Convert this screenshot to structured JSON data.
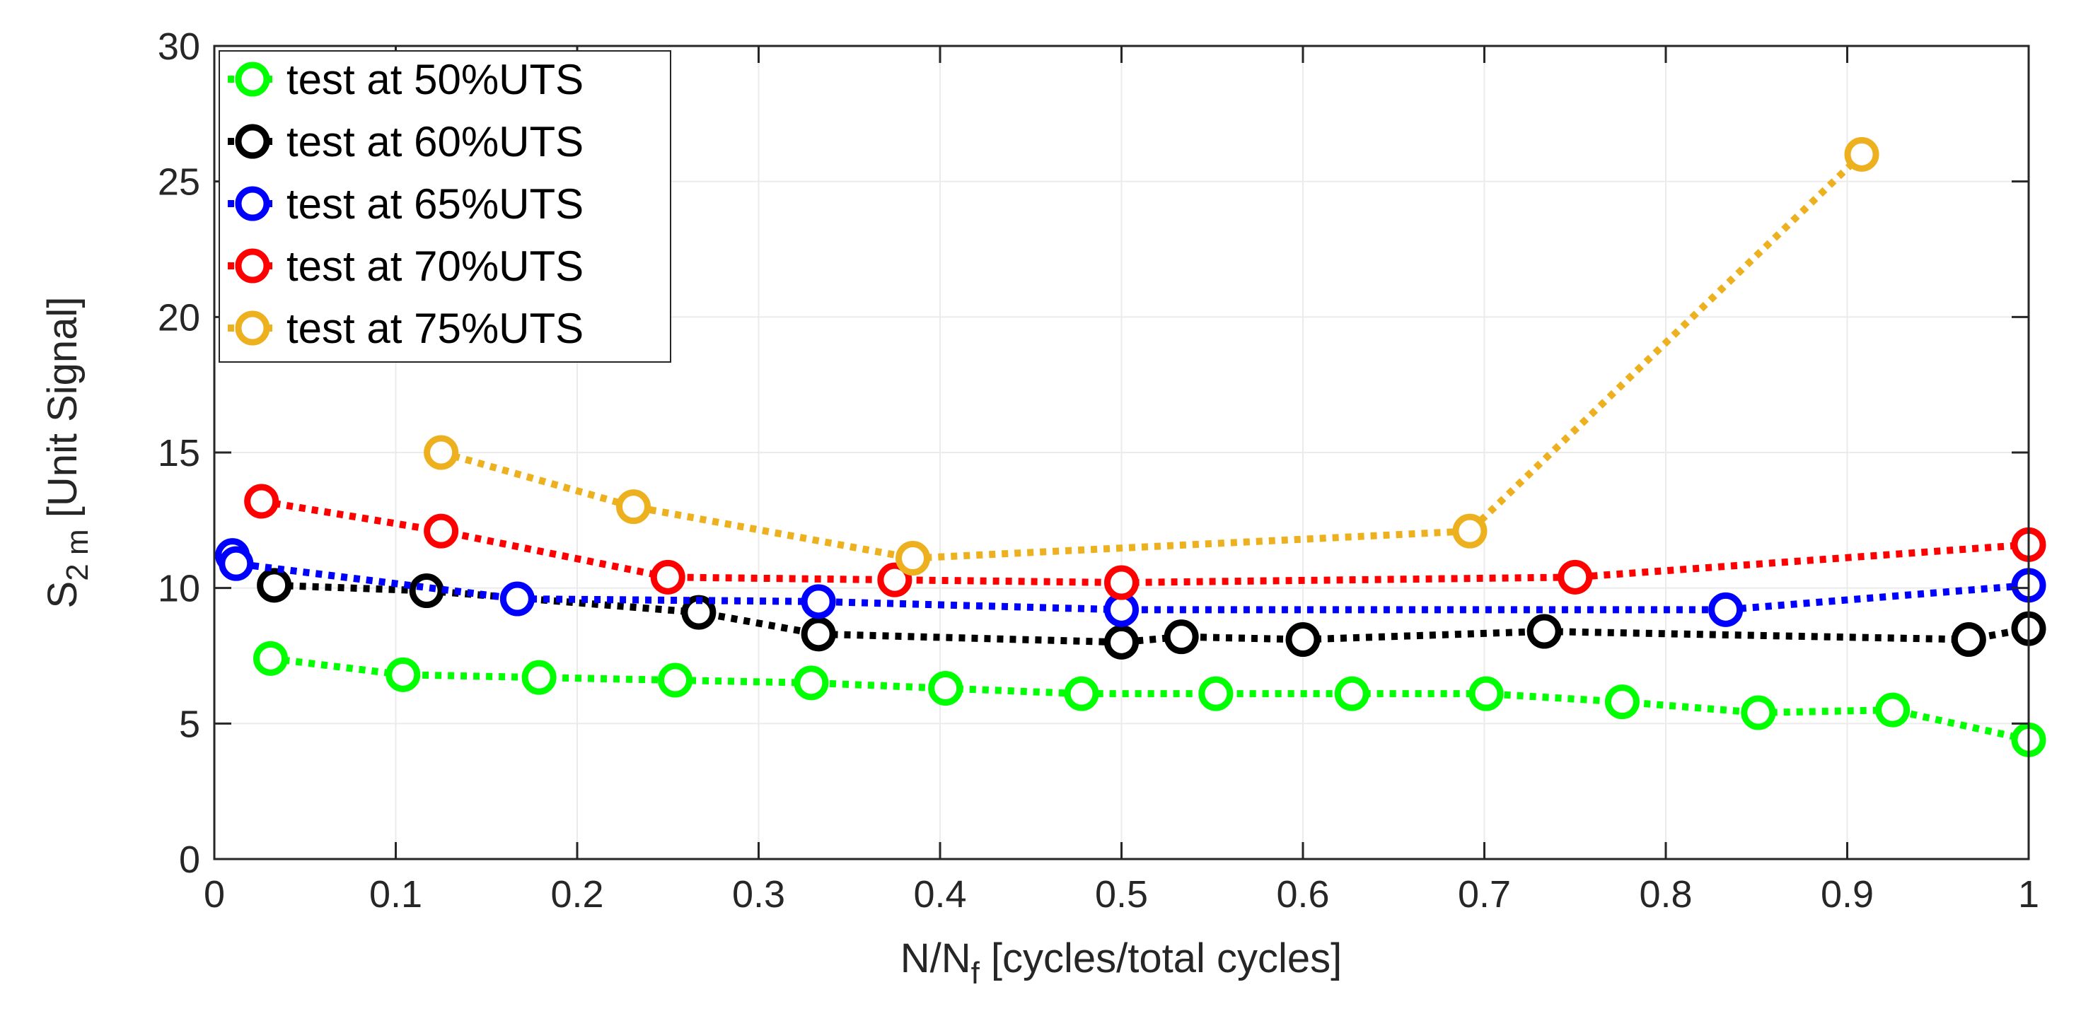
{
  "chart_data": {
    "type": "line",
    "title": "",
    "xlabel": "N/N",
    "xlabel_sub": "f",
    "xlabel_rest": " [cycles/total cycles]",
    "ylabel": "S",
    "ylabel_sub": "2 m",
    "ylabel_rest": " [Unit Signal]",
    "xlim": [
      0,
      1
    ],
    "ylim": [
      0,
      30
    ],
    "xticks": [
      0,
      0.1,
      0.2,
      0.3,
      0.4,
      0.5,
      0.6,
      0.7,
      0.8,
      0.9,
      1
    ],
    "xtick_labels": [
      "0",
      "0.1",
      "0.2",
      "0.3",
      "0.4",
      "0.5",
      "0.6",
      "0.7",
      "0.8",
      "0.9",
      "1"
    ],
    "yticks": [
      0,
      5,
      10,
      15,
      20,
      25,
      30
    ],
    "ytick_labels": [
      "0",
      "5",
      "10",
      "15",
      "20",
      "25",
      "30"
    ],
    "grid": true,
    "legend_position": "top-left",
    "series": [
      {
        "name": "test at 50%UTS",
        "color": "#00ff00",
        "x": [
          0.031,
          0.104,
          0.179,
          0.254,
          0.329,
          0.403,
          0.478,
          0.552,
          0.627,
          0.701,
          0.776,
          0.851,
          0.925,
          1.0
        ],
        "y": [
          7.4,
          6.8,
          6.7,
          6.6,
          6.5,
          6.3,
          6.1,
          6.1,
          6.1,
          6.1,
          5.8,
          5.4,
          5.5,
          4.4
        ]
      },
      {
        "name": "test at 60%UTS",
        "color": "#000000",
        "x": [
          0.033,
          0.117,
          0.267,
          0.333,
          0.5,
          0.533,
          0.6,
          0.733,
          0.967,
          1.0
        ],
        "y": [
          10.1,
          9.9,
          9.1,
          8.3,
          8.0,
          8.2,
          8.1,
          8.4,
          8.1,
          8.5
        ]
      },
      {
        "name": "test at 65%UTS",
        "color": "#0000ff",
        "x": [
          0.01,
          0.012,
          0.167,
          0.333,
          0.5,
          0.833,
          1.0
        ],
        "y": [
          11.2,
          10.9,
          9.6,
          9.5,
          9.2,
          9.2,
          10.1
        ]
      },
      {
        "name": "test at 70%UTS",
        "color": "#ff0000",
        "x": [
          0.026,
          0.125,
          0.25,
          0.375,
          0.5,
          0.75,
          1.0
        ],
        "y": [
          13.2,
          12.1,
          10.4,
          10.3,
          10.2,
          10.4,
          11.6
        ]
      },
      {
        "name": "test at 75%UTS",
        "color": "#edb120",
        "x": [
          0.125,
          0.231,
          0.385,
          0.692,
          0.908
        ],
        "y": [
          15.0,
          13.0,
          11.1,
          12.1,
          26.0
        ]
      }
    ]
  }
}
